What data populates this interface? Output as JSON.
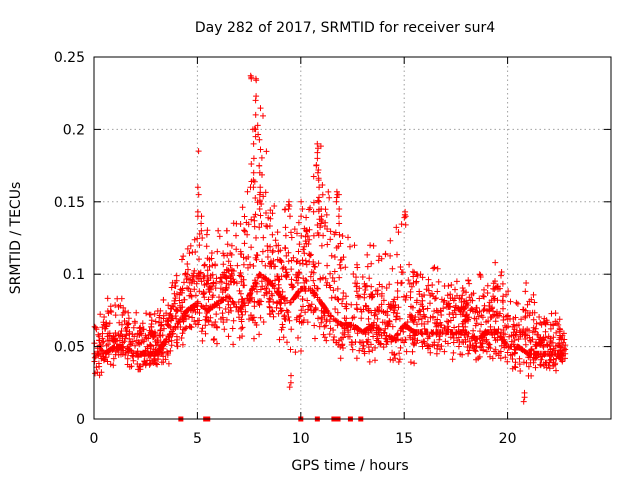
{
  "chart_data": {
    "type": "scatter",
    "title": "Day 282 of 2017, SRMTID for receiver sur4",
    "xlabel": "GPS time / hours",
    "ylabel": "SRMTID / TECUs",
    "xlim": [
      0,
      25
    ],
    "ylim": [
      0,
      0.25
    ],
    "xticks": [
      0,
      5,
      10,
      15,
      20
    ],
    "xtick_labels": [
      "0",
      "5",
      "10",
      "15",
      "20"
    ],
    "yticks": [
      0,
      0.05,
      0.1,
      0.15,
      0.2,
      0.25
    ],
    "ytick_labels": [
      "0",
      "0.05",
      "0.1",
      "0.15",
      "0.2",
      "0.25"
    ],
    "grid": true,
    "marker": "+",
    "color": "#ff0000",
    "envelope": {
      "hours": [
        0,
        0.5,
        1,
        1.5,
        2,
        2.5,
        3,
        3.5,
        4,
        4.5,
        5,
        5.5,
        6,
        6.5,
        7,
        7.5,
        8,
        8.5,
        9,
        9.5,
        10,
        10.5,
        11,
        11.5,
        12,
        12.5,
        13,
        13.5,
        14,
        14.5,
        15,
        15.5,
        16,
        16.5,
        17,
        17.5,
        18,
        18.5,
        19,
        19.5,
        20,
        20.5,
        21,
        21.5,
        22,
        22.5,
        22.8
      ],
      "low": [
        0.025,
        0.025,
        0.028,
        0.03,
        0.028,
        0.028,
        0.025,
        0.03,
        0.04,
        0.045,
        0.045,
        0.04,
        0.04,
        0.04,
        0.04,
        0.045,
        0.05,
        0.05,
        0.04,
        0.03,
        0.035,
        0.04,
        0.04,
        0.035,
        0.03,
        0.03,
        0.035,
        0.035,
        0.03,
        0.03,
        0.03,
        0.035,
        0.035,
        0.035,
        0.03,
        0.035,
        0.035,
        0.03,
        0.03,
        0.03,
        0.025,
        0.025,
        0.02,
        0.025,
        0.025,
        0.03,
        0.03
      ],
      "mid": [
        0.045,
        0.045,
        0.05,
        0.05,
        0.045,
        0.045,
        0.045,
        0.055,
        0.065,
        0.075,
        0.08,
        0.075,
        0.08,
        0.085,
        0.075,
        0.085,
        0.1,
        0.095,
        0.085,
        0.08,
        0.09,
        0.09,
        0.08,
        0.07,
        0.065,
        0.065,
        0.06,
        0.065,
        0.06,
        0.055,
        0.065,
        0.06,
        0.06,
        0.06,
        0.06,
        0.06,
        0.06,
        0.055,
        0.06,
        0.06,
        0.05,
        0.05,
        0.045,
        0.045,
        0.045,
        0.045,
        0.045
      ],
      "high": [
        0.075,
        0.08,
        0.09,
        0.08,
        0.075,
        0.075,
        0.075,
        0.085,
        0.1,
        0.12,
        0.14,
        0.13,
        0.13,
        0.13,
        0.14,
        0.16,
        0.235,
        0.16,
        0.14,
        0.15,
        0.15,
        0.16,
        0.19,
        0.14,
        0.15,
        0.12,
        0.12,
        0.12,
        0.11,
        0.13,
        0.14,
        0.1,
        0.1,
        0.105,
        0.1,
        0.095,
        0.095,
        0.1,
        0.1,
        0.11,
        0.09,
        0.09,
        0.095,
        0.085,
        0.08,
        0.07,
        0.06
      ]
    },
    "spikes": [
      {
        "hour": 5.05,
        "values": [
          0.185,
          0.16,
          0.155,
          0.143,
          0.14
        ]
      },
      {
        "hour": 5.2,
        "values": [
          0.14,
          0.135,
          0.13,
          0.125
        ]
      },
      {
        "hour": 7.6,
        "values": [
          0.237,
          0.236,
          0.235
        ]
      },
      {
        "hour": 7.85,
        "values": [
          0.235,
          0.234,
          0.223,
          0.22,
          0.21,
          0.2,
          0.195
        ]
      },
      {
        "hour": 7.7,
        "values": [
          0.2,
          0.19,
          0.18,
          0.17,
          0.165,
          0.16
        ]
      },
      {
        "hour": 8.0,
        "values": [
          0.175,
          0.17,
          0.16,
          0.155,
          0.15,
          0.145
        ]
      },
      {
        "hour": 9.45,
        "values": [
          0.15,
          0.148,
          0.147,
          0.145,
          0.14
        ]
      },
      {
        "hour": 10.8,
        "values": [
          0.19,
          0.187,
          0.184,
          0.18
        ]
      },
      {
        "hour": 10.85,
        "values": [
          0.17,
          0.165,
          0.16,
          0.15
        ]
      },
      {
        "hour": 11.0,
        "values": [
          0.145,
          0.14,
          0.135
        ]
      },
      {
        "hour": 11.75,
        "values": [
          0.157,
          0.155,
          0.153,
          0.15
        ]
      },
      {
        "hour": 11.85,
        "values": [
          0.155,
          0.145,
          0.14,
          0.135
        ]
      },
      {
        "hour": 10.05,
        "values": [
          0.15,
          0.145,
          0.14
        ]
      },
      {
        "hour": 15.05,
        "values": [
          0.143,
          0.141,
          0.14
        ]
      },
      {
        "hour": 9.5,
        "values": [
          0.022,
          0.025,
          0.03
        ]
      },
      {
        "hour": 20.8,
        "values": [
          0.012,
          0.015,
          0.018
        ]
      }
    ],
    "baseline_marks_hours": [
      4.2,
      5.4,
      5.5,
      10.0,
      10.8,
      11.6,
      11.8,
      12.4,
      12.9
    ],
    "baseline_marks_value": 0
  }
}
